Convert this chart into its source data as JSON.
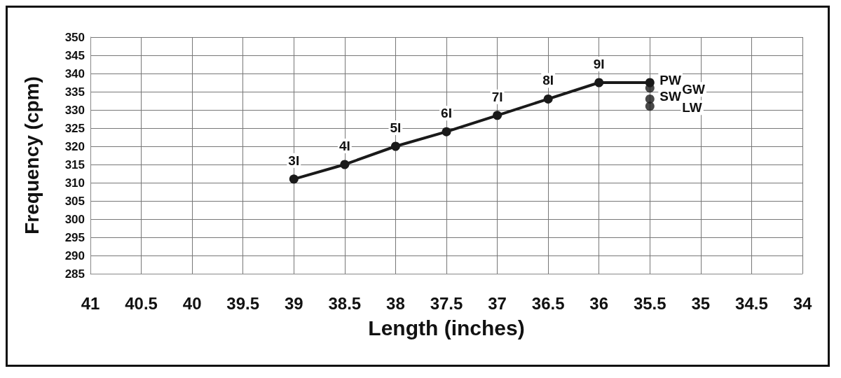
{
  "chart_data": {
    "type": "line",
    "xlabel": "Length (inches)",
    "ylabel": "Frequency (cpm)",
    "series": [
      {
        "color": "#1a1a1a",
        "x": [
          39,
          38.5,
          38,
          37.5,
          37,
          36.5,
          36,
          35.5
        ],
        "values": [
          311,
          315,
          320,
          324,
          328.5,
          333,
          337.5,
          337.5
        ]
      },
      {
        "type": "scatter",
        "color": "#1a1a1a",
        "x": [
          35.5,
          35.5,
          35.5
        ],
        "values": [
          336,
          333,
          331
        ]
      }
    ],
    "annotations": [
      {
        "text": "3I",
        "x": 39,
        "y": 311
      },
      {
        "text": "4I",
        "x": 38.5,
        "y": 315
      },
      {
        "text": "5I",
        "x": 38,
        "y": 320
      },
      {
        "text": "6I",
        "x": 37.5,
        "y": 324
      },
      {
        "text": "7I",
        "x": 37,
        "y": 328.5
      },
      {
        "text": "8I",
        "x": 36.5,
        "y": 333
      },
      {
        "text": "9I",
        "x": 36,
        "y": 337.5
      },
      {
        "text": "PW",
        "x": 35.5,
        "y": 337.5
      },
      {
        "text": "GW",
        "x": 35.5,
        "y": 336
      },
      {
        "text": "SW",
        "x": 35.5,
        "y": 333
      },
      {
        "text": "LW",
        "x": 35.5,
        "y": 331
      }
    ],
    "xlim": [
      41,
      34
    ],
    "xticks": [
      41,
      40.5,
      40,
      39.5,
      39,
      38.5,
      38,
      37.5,
      37,
      36.5,
      36,
      35.5,
      35,
      34.5,
      34
    ],
    "ylim": [
      285,
      350
    ],
    "yticks": [
      285,
      290,
      295,
      300,
      305,
      310,
      315,
      320,
      325,
      330,
      335,
      340,
      345,
      350
    ],
    "grid": true,
    "marker": "circle",
    "line_style": "solid"
  }
}
